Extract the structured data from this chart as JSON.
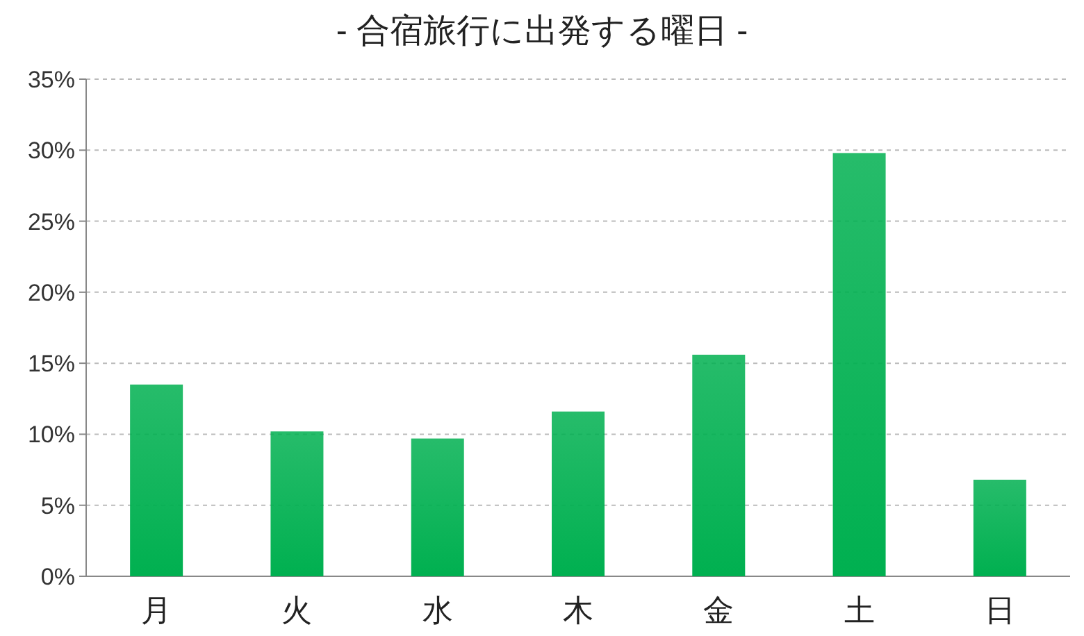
{
  "chart_data": {
    "type": "bar",
    "title": "- 合宿旅行に出発する曜日 -",
    "categories": [
      "月",
      "火",
      "水",
      "木",
      "金",
      "土",
      "日"
    ],
    "values": [
      13.5,
      10.2,
      9.7,
      11.6,
      15.6,
      29.8,
      6.8
    ],
    "color": "#00b050",
    "ylim": [
      0,
      35
    ],
    "yticks": [
      {
        "value": 0,
        "label": "0%"
      },
      {
        "value": 5,
        "label": "5%"
      },
      {
        "value": 10,
        "label": "10%"
      },
      {
        "value": 15,
        "label": "15%"
      },
      {
        "value": 20,
        "label": "20%"
      },
      {
        "value": 25,
        "label": "25%"
      },
      {
        "value": 30,
        "label": "30%"
      },
      {
        "value": 35,
        "label": "35%"
      }
    ],
    "grid": "y"
  }
}
